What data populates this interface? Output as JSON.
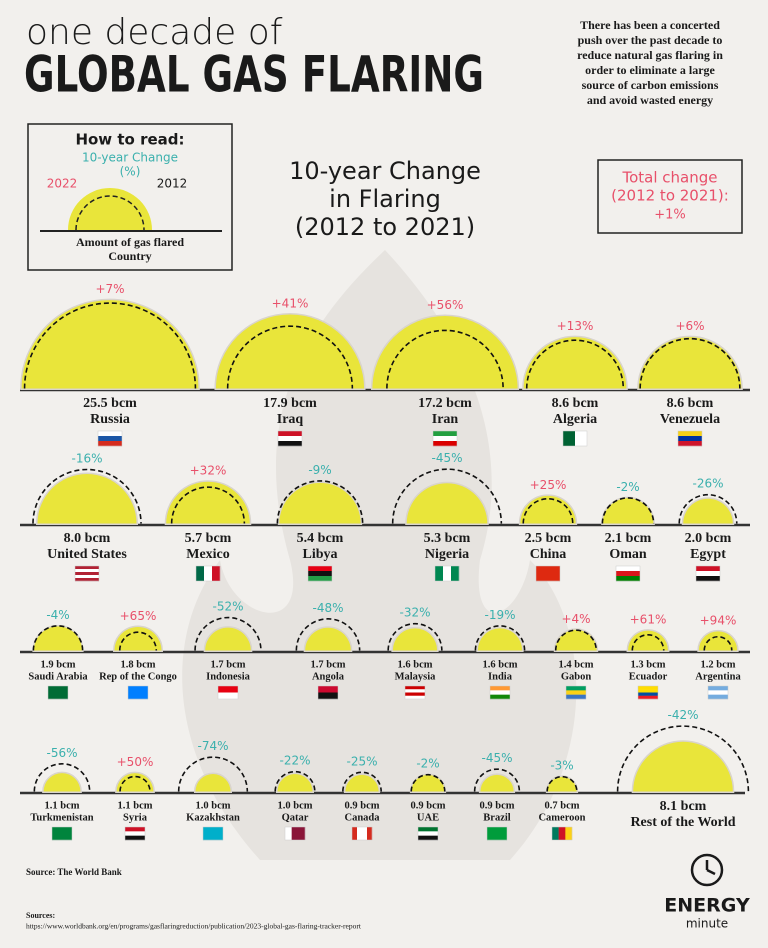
{
  "header": {
    "kicker": "one decade of",
    "title": "GLOBAL GAS FLARING",
    "intro": [
      "There has been a concerted",
      "push over the past decade to",
      "reduce natural gas flaring in",
      "order to eliminate a large",
      "source of carbon emissions",
      "and avoid wasted energy"
    ]
  },
  "how_to_read": {
    "title": "How to read:",
    "change": "10-year Change",
    "unit": "(%)",
    "left": "2022",
    "right": "2012",
    "bottom": [
      "Amount of gas flared",
      "Country"
    ]
  },
  "total": {
    "label": [
      "Total change",
      "(2012 to 2021):"
    ],
    "value": 1,
    "value_label": "+1%"
  },
  "chart_data": {
    "type": "semicircle",
    "title": [
      "10-year Change",
      "in Flaring",
      "(2012 to 2021)"
    ],
    "color": "#e9e53a",
    "increase_color": "#e8506a",
    "decrease_color": "#3bb0ad",
    "categories": [
      "Russia",
      "Iraq",
      "Iran",
      "Algeria",
      "Venezuela",
      "United States",
      "Mexico",
      "Libya",
      "Nigeria",
      "China",
      "Oman",
      "Egypt",
      "Saudi Arabia",
      "Rep of the Congo",
      "Indonesia",
      "Angola",
      "Malaysia",
      "India",
      "Gabon",
      "Ecuador",
      "Argentina",
      "Turkmenistan",
      "Syria",
      "Kazakhstan",
      "Qatar",
      "Canada",
      "UAE",
      "Brazil",
      "Cameroon",
      "Rest of the World"
    ],
    "values": [
      25.5,
      17.9,
      17.2,
      8.6,
      8.6,
      8.0,
      5.7,
      5.4,
      5.3,
      2.5,
      2.1,
      2.0,
      1.9,
      1.8,
      1.7,
      1.7,
      1.6,
      1.6,
      1.4,
      1.3,
      1.2,
      1.1,
      1.1,
      1.0,
      1.0,
      0.9,
      0.9,
      0.9,
      0.7,
      8.1
    ],
    "value_labels": [
      "25.5 bcm",
      "17.9 bcm",
      "17.2 bcm",
      "8.6 bcm",
      "8.6 bcm",
      "8.0 bcm",
      "5.7 bcm",
      "5.4 bcm",
      "5.3 bcm",
      "2.5 bcm",
      "2.1 bcm",
      "2.0 bcm",
      "1.9 bcm",
      "1.8 bcm",
      "1.7 bcm",
      "1.7 bcm",
      "1.6 bcm",
      "1.6 bcm",
      "1.4 bcm",
      "1.3 bcm",
      "1.2 bcm",
      "1.1 bcm",
      "1.1 bcm",
      "1.0 bcm",
      "1.0 bcm",
      "0.9 bcm",
      "0.9 bcm",
      "0.9 bcm",
      "0.7 bcm",
      "8.1 bcm"
    ],
    "change_values": [
      7,
      41,
      56,
      13,
      6,
      -16,
      32,
      -9,
      -45,
      25,
      -2,
      -26,
      -4,
      65,
      -52,
      -48,
      -32,
      -19,
      4,
      61,
      94,
      -56,
      50,
      -74,
      -22,
      -25,
      -2,
      -45,
      -3,
      -42
    ],
    "change_labels": [
      "+7%",
      "+41%",
      "+56%",
      "+13%",
      "+6%",
      "-16%",
      "+32%",
      "-9%",
      "-45%",
      "+25%",
      "-2%",
      "-26%",
      "-4%",
      "+65%",
      "-52%",
      "-48%",
      "-32%",
      "-19%",
      "+4%",
      "+61%",
      "+94%",
      "-56%",
      "+50%",
      "-74%",
      "-22%",
      "-25%",
      "-2%",
      "-45%",
      "-3%",
      "-42%"
    ]
  },
  "footer": {
    "source": "Source: The World Bank",
    "sources_title": "Sources:",
    "url": "https://www.worldbank.org/en/programs/gasflaringreduction/publication/2023-global-gas-flaring-tracker-report",
    "brand": [
      "ENERGY",
      "minute"
    ]
  }
}
